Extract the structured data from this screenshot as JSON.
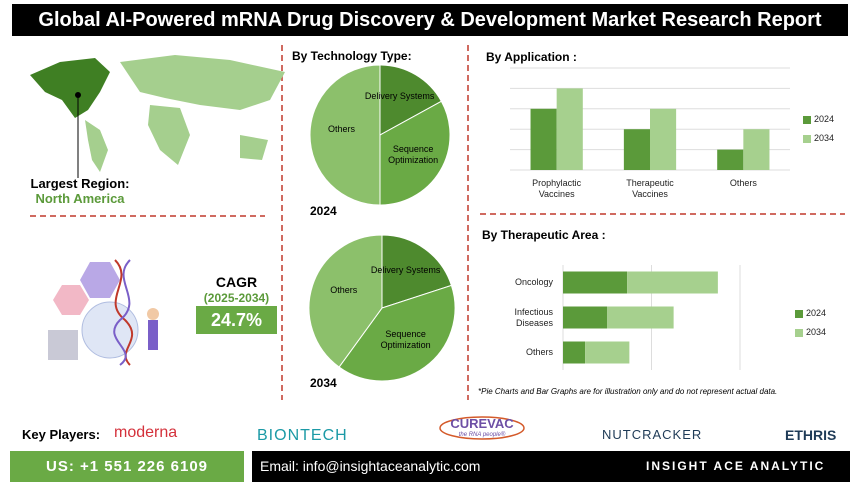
{
  "title": "Global AI-Powered mRNA Drug Discovery & Development Market Research Report",
  "region": {
    "label": "Largest Region:",
    "value": "North America"
  },
  "cagr": {
    "label": "CAGR",
    "period": "(2025-2034)",
    "value": "24.7%"
  },
  "chart_data": [
    {
      "type": "pie",
      "title": "By Technology Type:",
      "subtitle": "2024",
      "categories": [
        "Delivery Systems",
        "Sequence Optimization",
        "Others"
      ],
      "values": [
        17,
        33,
        50
      ],
      "colors": [
        "#4e8a2e",
        "#6aaa45",
        "#8cc06b"
      ]
    },
    {
      "type": "pie",
      "subtitle": "2034",
      "categories": [
        "Delivery Systems",
        "Sequence Optimization",
        "Others"
      ],
      "values": [
        20,
        40,
        40
      ],
      "colors": [
        "#4e8a2e",
        "#6aaa45",
        "#8cc06b"
      ]
    },
    {
      "type": "bar",
      "title": "By Application :",
      "categories": [
        "Prophylactic Vaccines",
        "Therapeutic Vaccines",
        "Others"
      ],
      "series": [
        {
          "name": "2024",
          "color": "#5b9a3a",
          "values": [
            60,
            40,
            20
          ]
        },
        {
          "name": "2034",
          "color": "#a6d08e",
          "values": [
            80,
            60,
            40
          ]
        }
      ],
      "ylim": [
        0,
        100
      ],
      "yticks": [
        0,
        20,
        40,
        60,
        80,
        100
      ],
      "grid": true,
      "legend": "right"
    },
    {
      "type": "hbar",
      "stacked": true,
      "title": "By Therapeutic Area :",
      "categories": [
        "Oncology",
        "Infectious Diseases",
        "Others"
      ],
      "series": [
        {
          "name": "2024",
          "color": "#5b9a3a",
          "values": [
            29,
            20,
            10
          ]
        },
        {
          "name": "2034",
          "color": "#a6d08e",
          "values": [
            41,
            30,
            20
          ]
        }
      ],
      "xlim": [
        0,
        80
      ],
      "xticks": [
        0,
        40,
        80
      ],
      "grid": true,
      "legend": "right"
    }
  ],
  "footnote": "*Pie Charts and Bar Graphs are for illustration only and do not represent actual data.",
  "key_players": {
    "label": "Key Players:",
    "items": [
      "moderna",
      "BIONTECH",
      "CUREVAC",
      "NUTCRACKER",
      "ETHRIS"
    ],
    "tagline": "the RNA people®"
  },
  "footer": {
    "phone": "US: +1 551 226 6109",
    "email": "Email: info@insightaceanalytic.com",
    "brand": "INSIGHT ACE ANALYTIC"
  }
}
